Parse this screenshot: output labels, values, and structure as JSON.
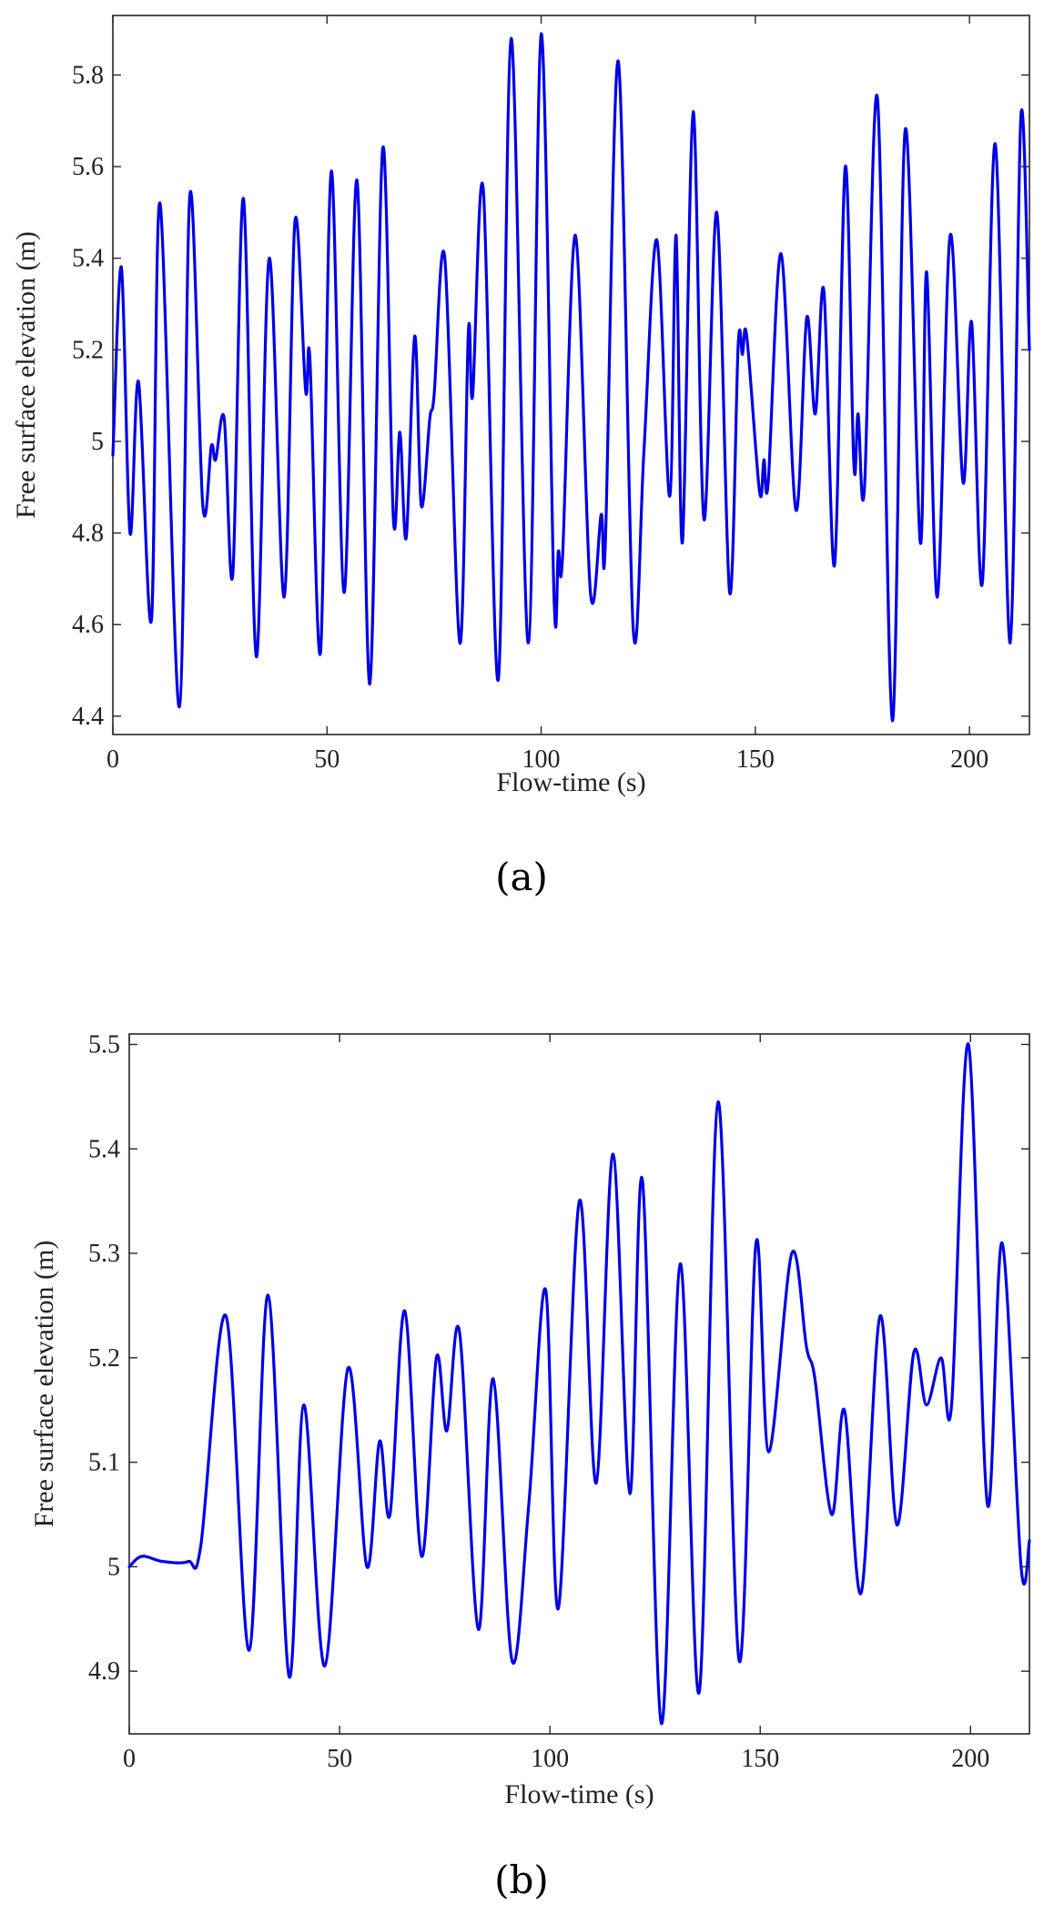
{
  "chart_data": [
    {
      "type": "line",
      "caption": "(a)",
      "xlabel": "Flow-time (s)",
      "ylabel": "Free surface elevation (m)",
      "xlim": [
        0,
        214
      ],
      "ylim": [
        4.36,
        5.93
      ],
      "xticks": [
        0,
        50,
        100,
        150,
        200
      ],
      "xtick_labels": [
        "0",
        "50",
        "100",
        "150",
        "200"
      ],
      "yticks": [
        4.4,
        4.6,
        4.8,
        5.0,
        5.2,
        5.4,
        5.6,
        5.8
      ],
      "ytick_labels": [
        "4.4",
        "4.6",
        "4.8",
        "5",
        "5.2",
        "5.4",
        "5.6",
        "5.8"
      ],
      "line_color": "#0000e6",
      "series": [
        {
          "name": "free surface elevation",
          "x": [
            0,
            2,
            4,
            6,
            9,
            11,
            15.5,
            18,
            21,
            23,
            24,
            26,
            28,
            30.5,
            33.5,
            36.5,
            40,
            42.5,
            45,
            46,
            48.5,
            51,
            54,
            57,
            60,
            63,
            65.5,
            67,
            68.5,
            70.5,
            72,
            74,
            75,
            77.5,
            81,
            83,
            84,
            86.5,
            90,
            93,
            97,
            100,
            103,
            104,
            105,
            108,
            111.5,
            114,
            115,
            118,
            121.5,
            124,
            127,
            130,
            131.5,
            133,
            135.5,
            138,
            141,
            144,
            146,
            147,
            148,
            151,
            152,
            153,
            156,
            159.5,
            162,
            164,
            166,
            168.5,
            171,
            173,
            174,
            175.5,
            178.5,
            182,
            185,
            188.5,
            190,
            192.5,
            195.5,
            198.5,
            200.5,
            203,
            206,
            209.5,
            212,
            214
          ],
          "y": [
            4.97,
            5.38,
            4.8,
            5.13,
            4.61,
            5.52,
            4.42,
            5.54,
            4.86,
            4.99,
            4.96,
            5.05,
            4.71,
            5.53,
            4.53,
            5.4,
            4.66,
            5.48,
            5.11,
            5.18,
            4.54,
            5.59,
            4.67,
            5.57,
            4.47,
            5.64,
            4.83,
            5.02,
            4.79,
            5.23,
            4.86,
            5.05,
            5.1,
            5.4,
            4.56,
            5.24,
            5.1,
            5.55,
            4.48,
            5.88,
            4.56,
            5.89,
            4.66,
            4.76,
            4.75,
            5.45,
            4.67,
            4.84,
            4.78,
            5.83,
            4.59,
            4.98,
            5.44,
            4.88,
            5.45,
            4.78,
            5.72,
            4.83,
            5.5,
            4.67,
            5.21,
            5.19,
            5.23,
            4.89,
            4.96,
            4.91,
            5.41,
            4.85,
            5.27,
            5.06,
            5.33,
            4.73,
            5.6,
            4.95,
            5.06,
            4.9,
            5.75,
            4.39,
            5.68,
            4.78,
            5.37,
            4.66,
            5.45,
            4.91,
            5.26,
            4.69,
            5.65,
            4.56,
            5.71,
            5.2
          ]
        }
      ]
    },
    {
      "type": "line",
      "caption": "(b)",
      "xlabel": "Flow-time (s)",
      "ylabel": "Free surface elevation (m)",
      "xlim": [
        0,
        214
      ],
      "ylim": [
        4.84,
        5.51
      ],
      "xticks": [
        0,
        50,
        100,
        150,
        200
      ],
      "xtick_labels": [
        "0",
        "50",
        "100",
        "150",
        "200"
      ],
      "yticks": [
        4.9,
        5.0,
        5.1,
        5.2,
        5.3,
        5.4,
        5.5
      ],
      "ytick_labels": [
        "4.9",
        "5",
        "5.1",
        "5.2",
        "5.3",
        "5.4",
        "5.5"
      ],
      "line_color": "#0000e6",
      "series": [
        {
          "name": "free surface elevation",
          "x": [
            0,
            3,
            8,
            14,
            17,
            23,
            28.5,
            33,
            38,
            41.5,
            46.5,
            52,
            56.5,
            59.5,
            62,
            65.5,
            69.5,
            73,
            75.5,
            78.5,
            83,
            86.5,
            91,
            95,
            99,
            102,
            107,
            111,
            115,
            119,
            122,
            126.5,
            131,
            135.5,
            140,
            145,
            149,
            152,
            157.5,
            161,
            163,
            167,
            170,
            174,
            178.5,
            182.5,
            186.5,
            189.5,
            193,
            195.5,
            199.5,
            204,
            207.5,
            212,
            214
          ],
          "y": [
            5.0,
            5.01,
            5.005,
            5.005,
            5.02,
            5.24,
            4.92,
            5.26,
            4.895,
            5.155,
            4.905,
            5.19,
            5.0,
            5.12,
            5.05,
            5.245,
            5.01,
            5.2,
            5.13,
            5.225,
            4.94,
            5.18,
            4.91,
            5.06,
            5.265,
            4.96,
            5.35,
            5.08,
            5.395,
            5.07,
            5.37,
            4.85,
            5.29,
            4.88,
            5.445,
            4.91,
            5.31,
            5.11,
            5.3,
            5.21,
            5.18,
            5.05,
            5.15,
            4.975,
            5.24,
            5.04,
            5.205,
            5.155,
            5.2,
            5.155,
            5.5,
            5.06,
            5.31,
            5.0,
            5.025
          ]
        }
      ]
    }
  ]
}
